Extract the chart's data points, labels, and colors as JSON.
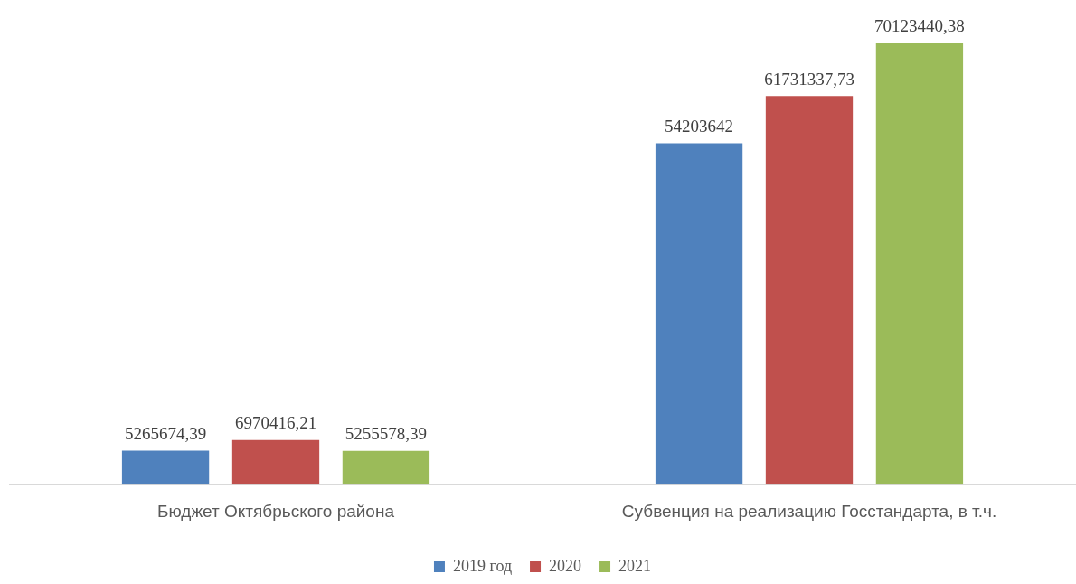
{
  "chart_data": {
    "type": "bar",
    "categories": [
      "Бюджет Октябрьского района",
      "Субвенция на реализацию Госстандарта, в т.ч."
    ],
    "series": [
      {
        "name": "2019 год",
        "color": "#4f81bd",
        "values": [
          5265674.39,
          54203642
        ],
        "value_labels": [
          "5265674,39",
          "54203642"
        ]
      },
      {
        "name": "2020",
        "color": "#c0504d",
        "values": [
          6970416.21,
          61731337.73
        ],
        "value_labels": [
          "6970416,21",
          "61731337,73"
        ]
      },
      {
        "name": "2021",
        "color": "#9bbb59",
        "values": [
          5255578.39,
          70123440.38
        ],
        "value_labels": [
          "5255578,39",
          "70123440,38"
        ]
      }
    ],
    "grid": false,
    "legend": "bottom",
    "tick_labels": "x"
  }
}
